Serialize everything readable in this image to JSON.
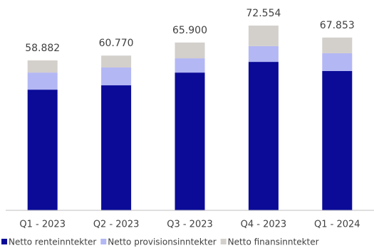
{
  "chart_data": {
    "type": "stacked_bar",
    "categories": [
      "Q1 - 2023",
      "Q2 - 2023",
      "Q3 - 2023",
      "Q4 - 2023",
      "Q1 - 2024"
    ],
    "series": [
      {
        "name": "Netto renteinntekter",
        "color": "#0b0b98",
        "values": [
          47.4,
          49.1,
          54.1,
          58.3,
          54.7
        ]
      },
      {
        "name": "Netto provisionsinntekter",
        "color": "#b3b7f4",
        "values": [
          6.7,
          7.0,
          5.6,
          6.2,
          7.0
        ]
      },
      {
        "name": "Netto finansinntekter",
        "color": "#d3cfcb",
        "values": [
          4.782,
          4.67,
          6.2,
          8.054,
          6.153
        ]
      }
    ],
    "totals": [
      58.882,
      60.77,
      65.9,
      72.554,
      67.853
    ],
    "total_labels": [
      "58.882",
      "60.770",
      "65.900",
      "72.554",
      "67.853"
    ]
  }
}
